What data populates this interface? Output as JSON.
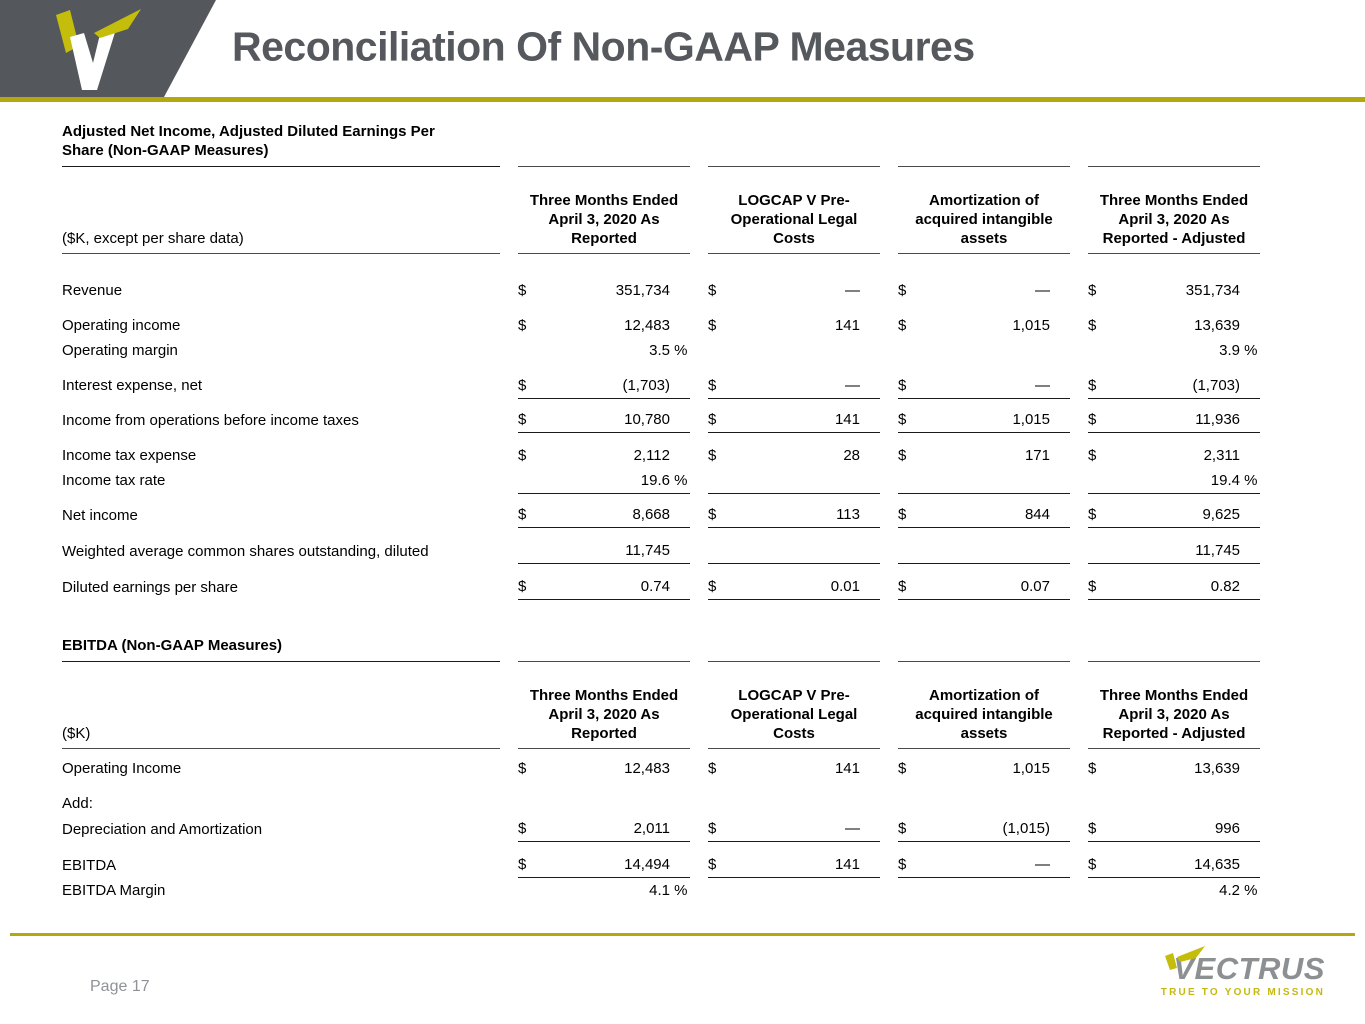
{
  "slide": {
    "title": "Reconciliation Of Non-GAAP Measures"
  },
  "footer": {
    "page_label": "Page 17",
    "brand": "VECTRUS",
    "tagline": "TRUE TO YOUR MISSION"
  },
  "colors": {
    "accent_yellow": "#b3a90f",
    "logo_yellow": "#c4bd0b",
    "header_gray": "#54585c",
    "title_gray": "#55585c",
    "page_number_gray": "#8f9296",
    "brand_gray": "#8d9092"
  },
  "icons": {
    "header_logo": "vectrus-v-logo",
    "footer_logo": "vectrus-wordmark"
  },
  "tables": [
    {
      "section_title": "Adjusted Net Income, Adjusted Diluted Earnings Per Share (Non-GAAP Measures)",
      "unit_label": "($K, except per share data)",
      "columns": [
        "Three Months Ended April 3, 2020 As Reported",
        "LOGCAP V Pre-Operational Legal Costs",
        "Amortization of acquired intangible assets",
        "Three Months Ended April 3, 2020 As Reported - Adjusted"
      ],
      "rows": [
        {
          "label": "Revenue",
          "cells": [
            {
              "d": "$",
              "v": "351,734"
            },
            {
              "d": "$",
              "v": "—"
            },
            {
              "d": "$",
              "v": "—"
            },
            {
              "d": "$",
              "v": "351,734"
            }
          ]
        },
        {
          "label": "Operating income",
          "cells": [
            {
              "d": "$",
              "v": "12,483"
            },
            {
              "d": "$",
              "v": "141"
            },
            {
              "d": "$",
              "v": "1,015"
            },
            {
              "d": "$",
              "v": "13,639"
            }
          ]
        },
        {
          "label": "Operating margin",
          "tight": true,
          "cells": [
            {
              "v": "3.5",
              "pct": true
            },
            null,
            null,
            {
              "v": "3.9",
              "pct": true
            }
          ]
        },
        {
          "label": "Interest expense, net",
          "cells": [
            {
              "d": "$",
              "v": "(1,703)"
            },
            {
              "d": "$",
              "v": "—"
            },
            {
              "d": "$",
              "v": "—"
            },
            {
              "d": "$",
              "v": "(1,703)"
            }
          ]
        },
        {
          "label": "Income from operations before income taxes",
          "rule_top": true,
          "rule_bottom": true,
          "cells": [
            {
              "d": "$",
              "v": "10,780"
            },
            {
              "d": "$",
              "v": "141"
            },
            {
              "d": "$",
              "v": "1,015"
            },
            {
              "d": "$",
              "v": "11,936"
            }
          ]
        },
        {
          "label": "Income tax expense",
          "cells": [
            {
              "d": "$",
              "v": "2,112"
            },
            {
              "d": "$",
              "v": "28"
            },
            {
              "d": "$",
              "v": "171"
            },
            {
              "d": "$",
              "v": "2,311"
            }
          ]
        },
        {
          "label": "Income tax rate",
          "tight": true,
          "cells": [
            {
              "v": "19.6",
              "pct": true
            },
            null,
            null,
            {
              "v": "19.4",
              "pct": true
            }
          ]
        },
        {
          "label": "Net income",
          "rule_top": true,
          "rule_bottom": true,
          "cells": [
            {
              "d": "$",
              "v": "8,668"
            },
            {
              "d": "$",
              "v": "113"
            },
            {
              "d": "$",
              "v": "844"
            },
            {
              "d": "$",
              "v": "9,625"
            }
          ]
        },
        {
          "label": "Weighted average common shares outstanding, diluted",
          "rule_bottom": true,
          "cells": [
            {
              "v": "11,745"
            },
            {},
            {},
            {
              "v": "11,745"
            }
          ]
        },
        {
          "label": "Diluted earnings per share",
          "rule_bottom": true,
          "cells": [
            {
              "d": "$",
              "v": "0.74"
            },
            {
              "d": "$",
              "v": "0.01"
            },
            {
              "d": "$",
              "v": "0.07"
            },
            {
              "d": "$",
              "v": "0.82"
            }
          ]
        }
      ]
    },
    {
      "section_title": "EBITDA (Non-GAAP Measures)",
      "unit_label": "($K)",
      "columns": [
        "Three Months Ended April 3, 2020 As Reported",
        "LOGCAP V Pre-Operational Legal Costs",
        "Amortization of acquired intangible assets",
        "Three Months Ended April 3, 2020 As Reported - Adjusted"
      ],
      "rows": [
        {
          "label": "Operating Income",
          "cells": [
            {
              "d": "$",
              "v": "12,483"
            },
            {
              "d": "$",
              "v": "141"
            },
            {
              "d": "$",
              "v": "1,015"
            },
            {
              "d": "$",
              "v": "13,639"
            }
          ]
        },
        {
          "label": "Add:",
          "cells": [
            null,
            null,
            null,
            null
          ]
        },
        {
          "label": "Depreciation and Amortization",
          "tight": true,
          "rule_bottom": true,
          "cells": [
            {
              "d": "$",
              "v": "2,011"
            },
            {
              "d": "$",
              "v": "—"
            },
            {
              "d": "$",
              "v": "(1,015)"
            },
            {
              "d": "$",
              "v": "996"
            }
          ]
        },
        {
          "label": "EBITDA",
          "rule_bottom": true,
          "cells": [
            {
              "d": "$",
              "v": "14,494"
            },
            {
              "d": "$",
              "v": "141"
            },
            {
              "d": "$",
              "v": "—"
            },
            {
              "d": "$",
              "v": "14,635"
            }
          ]
        },
        {
          "label": "EBITDA Margin",
          "tight": true,
          "cells": [
            {
              "v": "4.1",
              "pct": true
            },
            null,
            null,
            {
              "v": "4.2",
              "pct": true
            }
          ]
        }
      ]
    }
  ]
}
